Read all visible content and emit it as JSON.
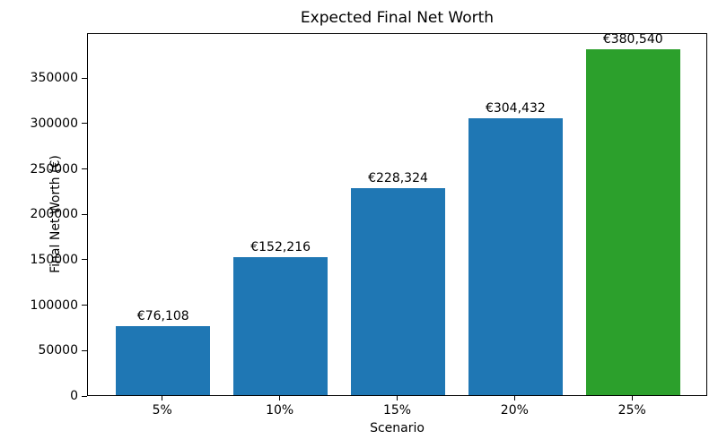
{
  "chart_data": {
    "type": "bar",
    "title": "Expected Final Net Worth",
    "xlabel": "Scenario",
    "ylabel": "Final Net Worth (€)",
    "categories": [
      "5%",
      "10%",
      "15%",
      "20%",
      "25%"
    ],
    "values": [
      76108,
      152216,
      228324,
      304432,
      380540
    ],
    "bar_labels": [
      "€76,108",
      "€152,216",
      "€228,324",
      "€304,432",
      "€380,540"
    ],
    "bar_colors": [
      "#1f77b4",
      "#1f77b4",
      "#1f77b4",
      "#1f77b4",
      "#2ca02c"
    ],
    "yticks": [
      0,
      50000,
      100000,
      150000,
      200000,
      250000,
      300000,
      350000
    ],
    "ytick_labels": [
      "0",
      "50000",
      "100000",
      "150000",
      "200000",
      "250000",
      "300000",
      "350000"
    ],
    "ylim": [
      0,
      399567
    ],
    "bar_rel_width": 0.8,
    "grid": false,
    "legend": "none",
    "background_color": "#ffffff",
    "spine_color": "#000000",
    "text_color": "#000000"
  }
}
